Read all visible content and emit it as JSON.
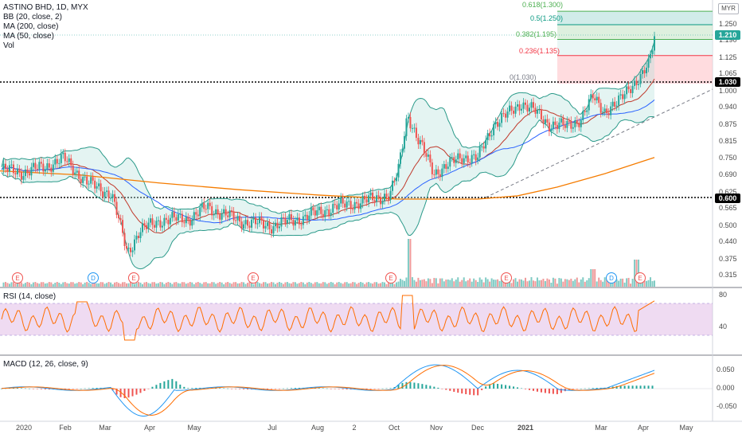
{
  "header": {
    "symbol": "ASTINO BHD, 1D, MYX",
    "indicators": [
      "BB (20, close, 2)",
      "MA (200, close)",
      "MA (50, close)",
      "Vol"
    ],
    "currency": "MYR"
  },
  "price_axis": {
    "ticks": [
      "1.250",
      "1.190",
      "1.125",
      "1.065",
      "1.000",
      "0.940",
      "0.875",
      "0.815",
      "0.750",
      "0.690",
      "0.625",
      "0.565",
      "0.500",
      "0.440",
      "0.375",
      "0.315"
    ],
    "current_price": "1.210",
    "marked_levels": [
      "1.030",
      "0.600"
    ]
  },
  "fibonacci": {
    "levels": [
      {
        "label": "0.618(1.300)",
        "color": "#4caf50"
      },
      {
        "label": "0.5(1.250)",
        "color": "#089981"
      },
      {
        "label": "0.382(1.195)",
        "color": "#4caf50"
      },
      {
        "label": "0.236(1.135)",
        "color": "#f23645"
      },
      {
        "label": "0(1.030)",
        "color": "#787b86"
      }
    ]
  },
  "events": [
    {
      "letter": "E",
      "type": "earnings"
    },
    {
      "letter": "D",
      "type": "dividend"
    },
    {
      "letter": "E",
      "type": "earnings"
    },
    {
      "letter": "E",
      "type": "earnings"
    },
    {
      "letter": "E",
      "type": "earnings"
    },
    {
      "letter": "E",
      "type": "earnings"
    },
    {
      "letter": "D",
      "type": "dividend"
    },
    {
      "letter": "E",
      "type": "earnings"
    }
  ],
  "rsi": {
    "label": "RSI (14, close)",
    "ticks": [
      "80",
      "40"
    ]
  },
  "macd": {
    "label": "MACD (12, 26, close, 9)",
    "ticks": [
      "0.050",
      "0.000",
      "-0.050"
    ]
  },
  "time_axis": [
    "2020",
    "Feb",
    "Mar",
    "Apr",
    "May",
    "Jul",
    "Aug",
    "2",
    "Oct",
    "Nov",
    "Dec",
    "2021",
    "Mar",
    "Apr",
    "May"
  ],
  "colors": {
    "up": "#26a69a",
    "down": "#ef5350",
    "bb_basis": "#c0392b",
    "bb_band": "#2b9a8a",
    "ma200": "#f57c00",
    "ma50": "#2962ff",
    "rsi_line": "#ff6d00",
    "rsi_band": "#e1bee7",
    "macd_line": "#2196f3",
    "signal_line": "#ff6d00"
  }
}
